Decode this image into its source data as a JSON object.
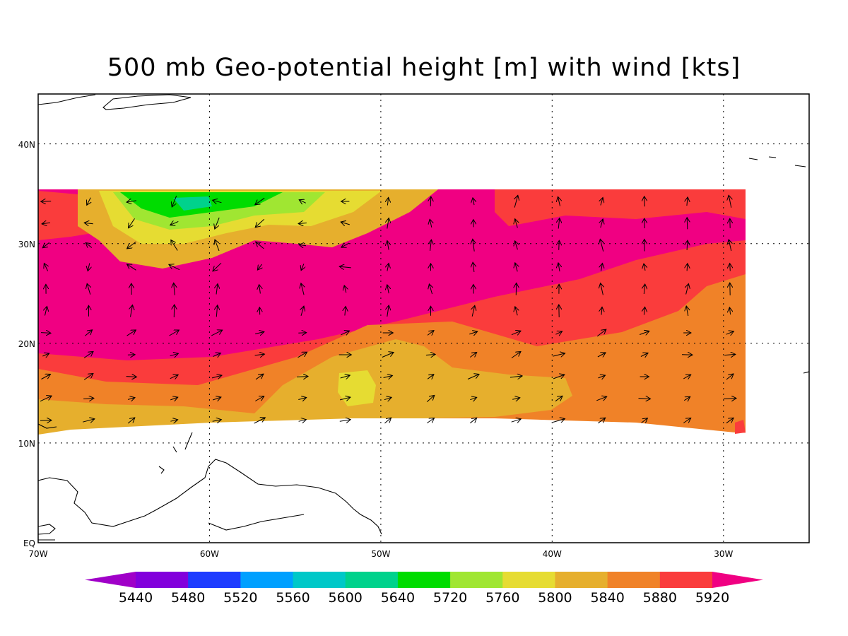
{
  "title": "500 mb Geo-potential height [m] with wind [kts]",
  "axes": {
    "lat_labels": [
      "EQ",
      "10N",
      "20N",
      "30N",
      "40N"
    ],
    "lon_labels": [
      "70W",
      "60W",
      "50W",
      "40W",
      "30W"
    ],
    "lon_range": [
      -70,
      -25
    ],
    "lat_range": [
      0,
      45
    ],
    "grid": "dotted"
  },
  "colorbar": {
    "labels": [
      "5440",
      "5480",
      "5520",
      "5560",
      "5600",
      "5640",
      "5720",
      "5760",
      "5800",
      "5840",
      "5880",
      "5920"
    ],
    "colors": [
      "#a000c8",
      "#8200dc",
      "#1e3cff",
      "#00a0ff",
      "#00c8c8",
      "#00d28c",
      "#00dc00",
      "#a0e632",
      "#e6dc32",
      "#e6af2d",
      "#f08228",
      "#fa3c3c",
      "#f00082"
    ]
  },
  "fields": {
    "data_lat_range": [
      11,
      35.5
    ],
    "data_lon_range": [
      -70,
      -29
    ]
  }
}
